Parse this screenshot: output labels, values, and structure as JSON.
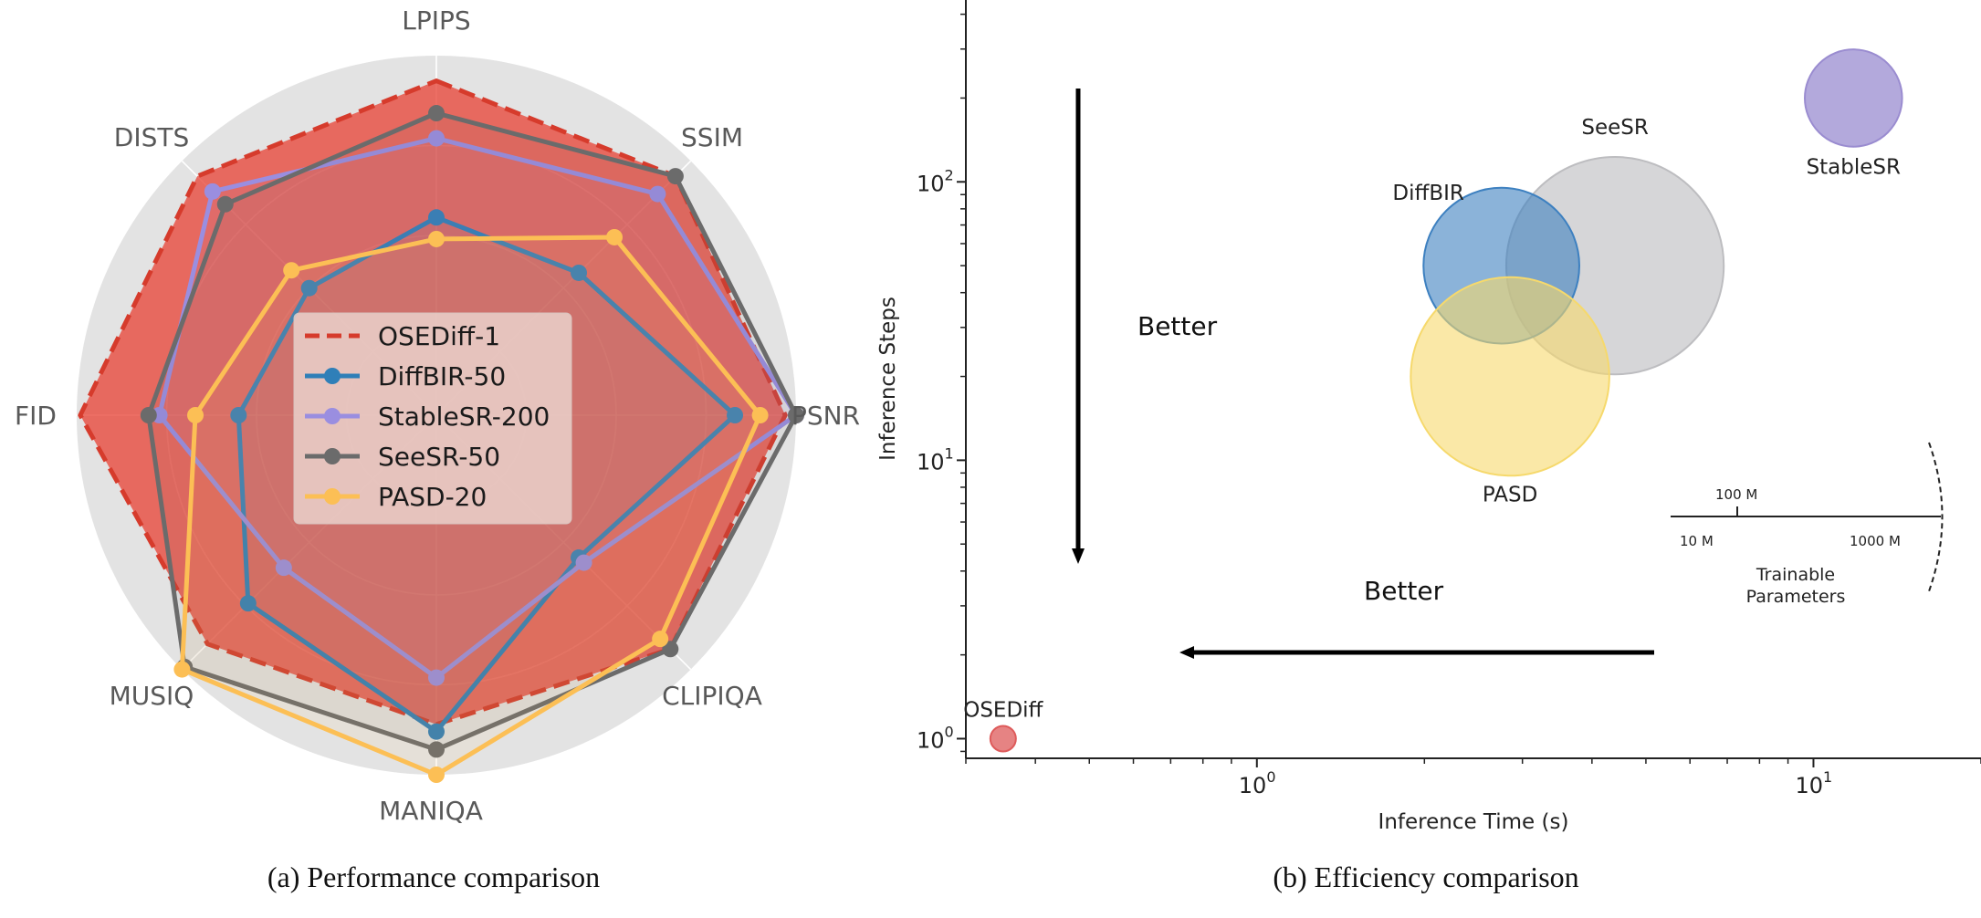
{
  "chart_data": [
    {
      "type": "radar",
      "caption": "(a) Performance comparison",
      "axes": [
        "LPIPS",
        "SSIM",
        "PSNR",
        "CLIPIQA",
        "MANIQA",
        "MUSIQ",
        "FID",
        "DISTS"
      ],
      "range": [
        0,
        1
      ],
      "grid": true,
      "legend_position": "center",
      "series": [
        {
          "name": "OSEDiff-1",
          "color": "#e8473a",
          "style": "dashed-filled",
          "values": [
            0.93,
            0.94,
            0.97,
            0.92,
            0.86,
            0.9,
            0.99,
            0.94
          ]
        },
        {
          "name": "DiffBIR-50",
          "color": "#2f7fb8",
          "style": "line-marker",
          "values": [
            0.55,
            0.56,
            0.83,
            0.56,
            0.88,
            0.74,
            0.55,
            0.5
          ]
        },
        {
          "name": "StableSR-200",
          "color": "#9a8ee0",
          "style": "line-marker",
          "values": [
            0.77,
            0.87,
            1.0,
            0.58,
            0.73,
            0.6,
            0.77,
            0.88
          ]
        },
        {
          "name": "SeeSR-50",
          "color": "#6b6b6b",
          "style": "line-marker",
          "values": [
            0.84,
            0.94,
            1.0,
            0.92,
            0.93,
            0.99,
            0.8,
            0.83
          ]
        },
        {
          "name": "PASD-20",
          "color": "#fcbf55",
          "style": "line-marker",
          "values": [
            0.49,
            0.7,
            0.9,
            0.88,
            1.0,
            1.0,
            0.67,
            0.57
          ]
        }
      ]
    },
    {
      "type": "bubble",
      "caption": "(b) Efficiency comparison",
      "xlabel": "Inference Time (s)",
      "ylabel": "Inference Steps",
      "xscale": "log",
      "yscale": "log",
      "xlim": [
        0.3,
        20
      ],
      "ylim": [
        0.85,
        450
      ],
      "xticks": [
        {
          "value": 1,
          "label": "10",
          "exp": "0"
        },
        {
          "value": 10,
          "label": "10",
          "exp": "1"
        }
      ],
      "yticks": [
        {
          "value": 1,
          "label": "10",
          "exp": "0"
        },
        {
          "value": 10,
          "label": "10",
          "exp": "1"
        },
        {
          "value": 100,
          "label": "10",
          "exp": "2"
        }
      ],
      "points": [
        {
          "name": "OSEDiff",
          "x": 0.35,
          "y": 1,
          "params_m": 9,
          "color": "#de5a5a",
          "alpha": 0.75
        },
        {
          "name": "DiffBIR",
          "x": 2.75,
          "y": 50,
          "params_m": 385,
          "color": "#3d80c0",
          "alpha": 0.6
        },
        {
          "name": "SeeSR",
          "x": 4.4,
          "y": 50,
          "params_m": 750,
          "color": "#bdbdc0",
          "alpha": 0.62
        },
        {
          "name": "PASD",
          "x": 2.85,
          "y": 20,
          "params_m": 625,
          "color": "#f6d96c",
          "alpha": 0.6
        },
        {
          "name": "StableSR",
          "x": 11.8,
          "y": 200,
          "params_m": 150,
          "color": "#9a8cd0",
          "alpha": 0.75
        }
      ],
      "annotations": [
        "Better",
        "Better"
      ],
      "size_legend": {
        "title": "Trainable Parameters",
        "ticks": [
          "10 M",
          "100 M",
          "1000 M"
        ]
      }
    }
  ]
}
